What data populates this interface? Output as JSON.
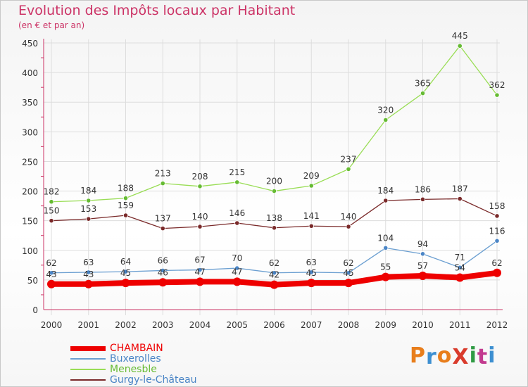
{
  "title": "Evolution des Impôts locaux par Habitant",
  "subtitle": "(en € et par an)",
  "logo": {
    "text": "ProXiti",
    "colors": [
      "#e87e1c",
      "#3d8fd1",
      "#e87e1c",
      "#d93b2c",
      "#2f9a43",
      "#c23a8f",
      "#3d8fd1"
    ]
  },
  "chart_data": {
    "type": "line",
    "x": [
      "2000",
      "2001",
      "2002",
      "2003",
      "2004",
      "2005",
      "2006",
      "2007",
      "2008",
      "2009",
      "2010",
      "2011",
      "2012"
    ],
    "ylim": [
      0,
      450
    ],
    "yticks": [
      "0",
      "50",
      "100",
      "150",
      "200",
      "250",
      "300",
      "350",
      "400",
      "450"
    ],
    "grid": true,
    "legend_position": "bottom-left",
    "series": [
      {
        "name": "Menesble",
        "color": "#99dd55",
        "marker": "#66bb33",
        "width": 1.3,
        "labelColor": "#333333",
        "values": [
          182,
          184,
          188,
          213,
          208,
          215,
          200,
          209,
          237,
          320,
          365,
          445,
          362
        ]
      },
      {
        "name": "Gurgy-le-Château",
        "color": "#7a2a2a",
        "marker": "#7a2a2a",
        "width": 1.3,
        "labelColor": "#333333",
        "values": [
          150,
          153,
          159,
          137,
          140,
          146,
          138,
          141,
          140,
          184,
          186,
          187,
          158
        ]
      },
      {
        "name": "Buxerolles",
        "color": "#6b9fd1",
        "marker": "#4a85c6",
        "width": 1.3,
        "labelColor": "#333333",
        "values": [
          62,
          63,
          64,
          66,
          67,
          70,
          62,
          63,
          62,
          104,
          94,
          71,
          116
        ]
      },
      {
        "name": "CHAMBAIN",
        "color": "#ee0000",
        "marker": "#ee0000",
        "width": 8,
        "labelColor": "#333333",
        "values": [
          43,
          43,
          45,
          46,
          47,
          47,
          42,
          45,
          45,
          55,
          57,
          54,
          62
        ]
      }
    ],
    "legend_order": [
      "CHAMBAIN",
      "Buxerolles",
      "Menesble",
      "Gurgy-le-Château"
    ],
    "legend_text_colors": {
      "CHAMBAIN": "#ee0000",
      "Buxerolles": "#4a85c6",
      "Menesble": "#66bb33",
      "Gurgy-le-Château": "#4a85c6"
    }
  }
}
